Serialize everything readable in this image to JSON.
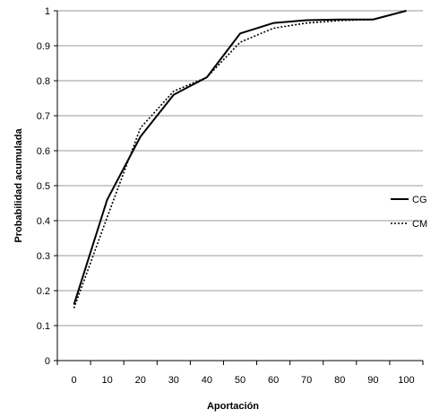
{
  "chart_data": {
    "type": "line",
    "title": "",
    "xlabel": "Aportación",
    "ylabel": "Probabilidad  acumulada",
    "x": [
      0,
      10,
      20,
      30,
      40,
      50,
      60,
      70,
      80,
      90,
      100
    ],
    "x_tick_labels": [
      "0",
      "10",
      "20",
      "30",
      "40",
      "50",
      "60",
      "70",
      "80",
      "90",
      "100"
    ],
    "y_tick_labels": [
      "0",
      "0.1",
      "0.2",
      "0.3",
      "0.4",
      "0.5",
      "0.6",
      "0.7",
      "0.8",
      "0.9",
      "1"
    ],
    "xlim": [
      -5,
      105
    ],
    "ylim": [
      0,
      1
    ],
    "grid": "horizontal",
    "legend_position": "right",
    "series": [
      {
        "name": "CG",
        "style": "solid",
        "color": "#000000",
        "values": [
          0.16,
          0.46,
          0.64,
          0.76,
          0.81,
          0.935,
          0.965,
          0.973,
          0.975,
          0.975,
          1.0
        ]
      },
      {
        "name": "CM",
        "style": "dotted",
        "color": "#000000",
        "values": [
          0.15,
          0.41,
          0.665,
          0.77,
          0.81,
          0.91,
          0.95,
          0.965,
          0.972,
          0.975,
          1.0
        ]
      }
    ]
  }
}
